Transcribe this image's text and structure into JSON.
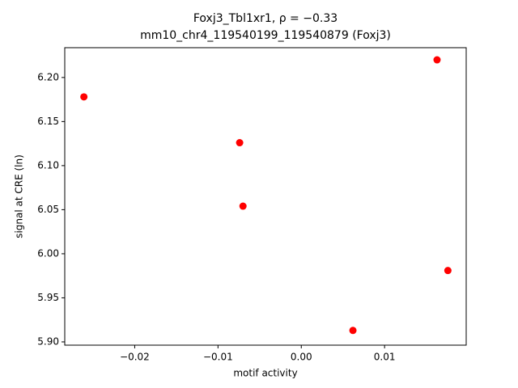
{
  "chart_data": {
    "type": "scatter",
    "title": "Foxj3_Tbl1xr1, ρ = −0.33",
    "subtitle": "mm10_chr4_119540199_119540879 (Foxj3)",
    "x_label": "motif activity",
    "y_label": "signal at CRE (ln)",
    "color": "#ff0000",
    "x": [
      -0.0261,
      -0.0074,
      -0.007,
      0.0163,
      0.0176,
      0.0062
    ],
    "values": [
      6.178,
      6.126,
      6.054,
      6.22,
      5.981,
      5.913
    ],
    "xlim": [
      -0.0284,
      0.0198
    ],
    "ylim": [
      5.8963,
      6.2338
    ],
    "xticks": [
      {
        "value": -0.02,
        "label": "−0.02"
      },
      {
        "value": -0.01,
        "label": "−0.01"
      },
      {
        "value": 0,
        "label": "0.00"
      },
      0.01
    ],
    "yticks": [
      {
        "value": 5.9,
        "label": "5.90"
      },
      5.95,
      {
        "value": 6.0,
        "label": "6.00"
      },
      6.05,
      {
        "value": 6.1,
        "label": "6.10"
      },
      6.15,
      {
        "value": 6.2,
        "label": "6.20"
      }
    ]
  }
}
